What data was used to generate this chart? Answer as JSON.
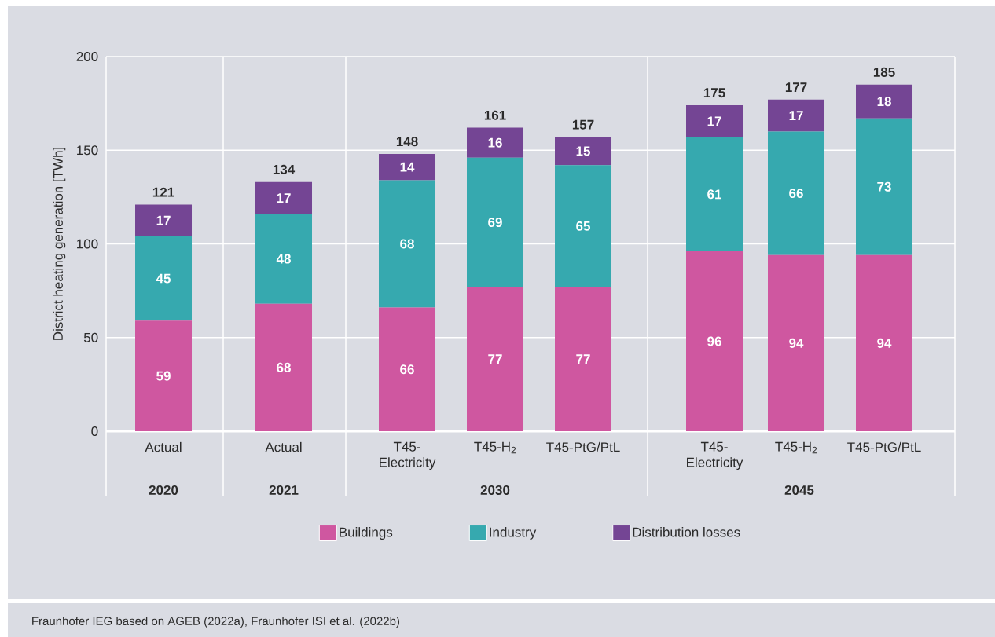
{
  "chart_data": {
    "type": "bar",
    "stacked": true,
    "ylabel": "District heating generation [TWh]",
    "categories": [
      "Actual",
      "Actual",
      "T45-Electricity",
      "T45-H$_{2}$",
      "T45-PtG/PtL",
      "T45-Electricity",
      "T45-H$_{2}$",
      "T45-PtG/PtL"
    ],
    "series": [
      {
        "name": "Buildings",
        "color": "#cf57a0",
        "values": [
          59,
          68,
          66,
          77,
          77,
          96,
          94,
          94
        ]
      },
      {
        "name": "Industry",
        "color": "#36a9af",
        "values": [
          45,
          48,
          68,
          69,
          65,
          61,
          66,
          73
        ]
      },
      {
        "name": "Distribution losses",
        "color": "#744594",
        "values": [
          17,
          17,
          14,
          16,
          15,
          17,
          17,
          18
        ]
      }
    ],
    "totals": [
      "121",
      "134",
      "148",
      "161",
      "157",
      "175",
      "177",
      "185"
    ],
    "data_labels": true,
    "ylim": [
      0,
      200
    ],
    "yticks": [
      0,
      50,
      100,
      150,
      200
    ],
    "grid": "y",
    "legend": "bottom",
    "annotations": [
      "2020",
      "2021",
      "2030",
      "2045",
      "Fraunhofer IEG based on AGEB (2022a), Fraunhofer ISI et al. (2022b)"
    ]
  }
}
